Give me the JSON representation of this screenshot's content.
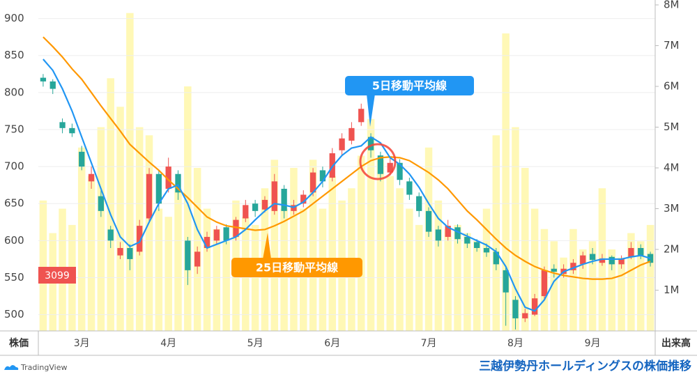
{
  "chart_data": {
    "type": "candlestick",
    "title": "三越伊勢丹ホールディングスの株価推移",
    "source": "TradingView",
    "y_label": "株価",
    "y2_label": "出来高",
    "price_label": "3099",
    "categories": [
      null,
      null,
      null,
      null,
      "3月",
      null,
      null,
      null,
      null,
      null,
      null,
      null,
      null,
      "4月",
      null,
      null,
      null,
      null,
      null,
      null,
      null,
      null,
      "5月",
      null,
      null,
      null,
      null,
      null,
      null,
      null,
      "6月",
      null,
      null,
      null,
      null,
      null,
      null,
      null,
      null,
      null,
      "7月",
      null,
      null,
      null,
      null,
      null,
      null,
      null,
      null,
      "8月",
      null,
      null,
      null,
      null,
      null,
      null,
      null,
      "9月",
      null,
      null,
      null,
      null,
      null,
      null
    ],
    "ohlc": [
      [
        820,
        825,
        808,
        815
      ],
      [
        815,
        818,
        798,
        805
      ],
      [
        760,
        765,
        745,
        752
      ],
      [
        752,
        758,
        740,
        745
      ],
      [
        720,
        728,
        695,
        700
      ],
      [
        680,
        700,
        670,
        690
      ],
      [
        660,
        668,
        632,
        640
      ],
      [
        615,
        620,
        590,
        600
      ],
      [
        580,
        598,
        575,
        590
      ],
      [
        590,
        595,
        560,
        575
      ],
      [
        585,
        628,
        580,
        620
      ],
      [
        630,
        698,
        625,
        690
      ],
      [
        690,
        695,
        640,
        650
      ],
      [
        670,
        712,
        665,
        700
      ],
      [
        690,
        695,
        655,
        665
      ],
      [
        600,
        605,
        540,
        560
      ],
      [
        565,
        592,
        555,
        585
      ],
      [
        590,
        612,
        585,
        605
      ],
      [
        600,
        620,
        595,
        615
      ],
      [
        618,
        622,
        595,
        600
      ],
      [
        605,
        632,
        600,
        628
      ],
      [
        630,
        655,
        625,
        648
      ],
      [
        650,
        655,
        632,
        640
      ],
      [
        642,
        660,
        638,
        655
      ],
      [
        640,
        690,
        635,
        680
      ],
      [
        670,
        675,
        630,
        640
      ],
      [
        640,
        655,
        635,
        648
      ],
      [
        650,
        668,
        645,
        662
      ],
      [
        665,
        698,
        660,
        692
      ],
      [
        695,
        700,
        672,
        680
      ],
      [
        685,
        725,
        680,
        718
      ],
      [
        722,
        745,
        715,
        738
      ],
      [
        735,
        760,
        730,
        752
      ],
      [
        760,
        785,
        755,
        778
      ],
      [
        740,
        745,
        712,
        722
      ],
      [
        715,
        720,
        680,
        690
      ],
      [
        692,
        712,
        688,
        705
      ],
      [
        705,
        710,
        675,
        682
      ],
      [
        680,
        685,
        655,
        662
      ],
      [
        660,
        665,
        632,
        640
      ],
      [
        640,
        645,
        605,
        612
      ],
      [
        615,
        620,
        592,
        600
      ],
      [
        605,
        628,
        600,
        620
      ],
      [
        618,
        622,
        596,
        602
      ],
      [
        605,
        610,
        590,
        596
      ],
      [
        598,
        602,
        585,
        590
      ],
      [
        590,
        596,
        578,
        584
      ],
      [
        585,
        590,
        560,
        568
      ],
      [
        560,
        565,
        485,
        530
      ],
      [
        520,
        525,
        480,
        495
      ],
      [
        495,
        508,
        490,
        502
      ],
      [
        500,
        528,
        498,
        522
      ],
      [
        525,
        565,
        520,
        560
      ],
      [
        562,
        568,
        550,
        558
      ],
      [
        555,
        568,
        550,
        562
      ],
      [
        560,
        575,
        555,
        570
      ],
      [
        568,
        585,
        562,
        580
      ],
      [
        582,
        590,
        568,
        574
      ],
      [
        570,
        582,
        566,
        576
      ],
      [
        578,
        580,
        560,
        568
      ],
      [
        568,
        580,
        562,
        575
      ],
      [
        578,
        598,
        575,
        590
      ],
      [
        590,
        595,
        575,
        580
      ],
      [
        582,
        585,
        565,
        570
      ]
    ],
    "volume": [
      3200000,
      2400000,
      3000000,
      2600000,
      4500000,
      3800000,
      5000000,
      6200000,
      5500000,
      7800000,
      5000000,
      4800000,
      3000000,
      2800000,
      3500000,
      6000000,
      4000000,
      3000000,
      2500000,
      2200000,
      3200000,
      2800000,
      2600000,
      3500000,
      4200000,
      3000000,
      4000000,
      3000000,
      4200000,
      3000000,
      3800000,
      3200000,
      3500000,
      4300000,
      5200000,
      4200000,
      3800000,
      3500000,
      3000000,
      2600000,
      4500000,
      3200000,
      2500000,
      2600000,
      2400000,
      2200000,
      3000000,
      4800000,
      7300000,
      5000000,
      4000000,
      3000000,
      2500000,
      2200000,
      1800000,
      2500000,
      2000000,
      2200000,
      3500000,
      2000000,
      1800000,
      2400000,
      2200000,
      2600000
    ],
    "ma5": [
      845,
      830,
      805,
      775,
      740,
      705,
      670,
      635,
      605,
      592,
      598,
      625,
      650,
      670,
      675,
      650,
      615,
      590,
      595,
      600,
      605,
      615,
      628,
      640,
      650,
      648,
      645,
      652,
      665,
      680,
      700,
      715,
      725,
      728,
      740,
      732,
      712,
      703,
      690,
      672,
      650,
      630,
      618,
      612,
      606,
      600,
      594,
      585,
      565,
      535,
      510,
      505,
      520,
      545,
      558,
      563,
      568,
      572,
      575,
      575,
      575,
      578,
      580,
      576
    ],
    "ma25": [
      875,
      862,
      848,
      832,
      818,
      800,
      782,
      765,
      748,
      730,
      718,
      706,
      695,
      682,
      670,
      658,
      645,
      632,
      625,
      620,
      618,
      616,
      614,
      615,
      620,
      626,
      633,
      640,
      650,
      660,
      670,
      680,
      690,
      700,
      708,
      712,
      713,
      712,
      708,
      700,
      692,
      682,
      670,
      655,
      640,
      628,
      615,
      602,
      590,
      580,
      572,
      565,
      560,
      556,
      553,
      551,
      549,
      548,
      548,
      549,
      553,
      560,
      567,
      572
    ],
    "annotations": [
      {
        "text": "5日移動平均線",
        "color": "#2196f3"
      },
      {
        "text": "25日移動平均線",
        "color": "#ff9800"
      }
    ],
    "up_color": "#ef5350",
    "down_color": "#26a69a",
    "volume_color": "#fff59d",
    "ma5_color": "#2196f3",
    "ma25_color": "#ff9800",
    "highlight_color": "#f44336",
    "ylim": [
      478,
      925
    ],
    "yticks": [
      500,
      550,
      600,
      650,
      700,
      750,
      800,
      850,
      900
    ],
    "y2lim": [
      0,
      8120000
    ],
    "y2ticks": [
      {
        "value": 1000000,
        "label": "1M"
      },
      {
        "value": 2000000,
        "label": "2M"
      },
      {
        "value": 3000000,
        "label": "3M"
      },
      {
        "value": 4000000,
        "label": "4M"
      },
      {
        "value": 5000000,
        "label": "5M"
      },
      {
        "value": 6000000,
        "label": "6M"
      },
      {
        "value": 7000000,
        "label": "7M"
      },
      {
        "value": 8000000,
        "label": "8M"
      }
    ],
    "grid": true
  }
}
